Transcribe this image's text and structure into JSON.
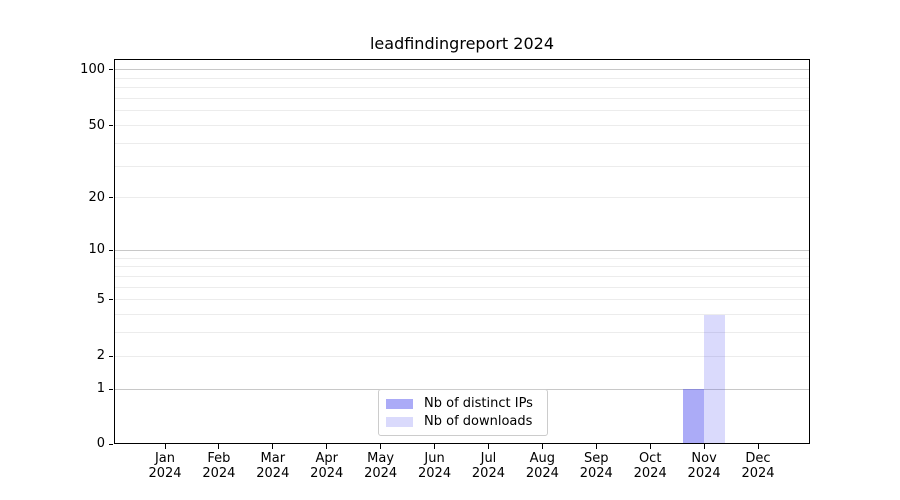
{
  "chart_data": {
    "type": "bar",
    "title": "leadfindingreport 2024",
    "x_categories": [
      "Jan",
      "Feb",
      "Mar",
      "Apr",
      "May",
      "Jun",
      "Jul",
      "Aug",
      "Sep",
      "Oct",
      "Nov",
      "Dec"
    ],
    "x_year": "2024",
    "series": [
      {
        "name": "Nb of distinct IPs",
        "color": "rgba(68,68,238,0.45)",
        "values": [
          0,
          0,
          0,
          0,
          0,
          0,
          0,
          0,
          0,
          0,
          1,
          0
        ]
      },
      {
        "name": "Nb of downloads",
        "color": "rgba(68,68,238,0.20)",
        "values": [
          0,
          0,
          0,
          0,
          0,
          0,
          0,
          0,
          0,
          0,
          4,
          0
        ]
      }
    ],
    "y_axis": {
      "scale": "log1p",
      "ticks": [
        0,
        1,
        2,
        5,
        10,
        20,
        50,
        100
      ],
      "range": [
        0,
        100
      ]
    },
    "gridlines": {
      "major": [
        1,
        10,
        100
      ],
      "minor": [
        2,
        3,
        4,
        5,
        6,
        7,
        8,
        9,
        20,
        30,
        40,
        50,
        60,
        70,
        80,
        90
      ]
    },
    "legend": {
      "position": "lower center",
      "entries": [
        "Nb of distinct IPs",
        "Nb of downloads"
      ]
    }
  },
  "colors": {
    "background": "#ffffff",
    "spine": "#000000",
    "grid_minor": "#ececec",
    "grid_major": "#c8c8c8",
    "bar_distinct_ips": "#aaaaf8",
    "bar_downloads": "#dcdcf8",
    "legend_border": "#cccccc",
    "text": "#000000"
  }
}
